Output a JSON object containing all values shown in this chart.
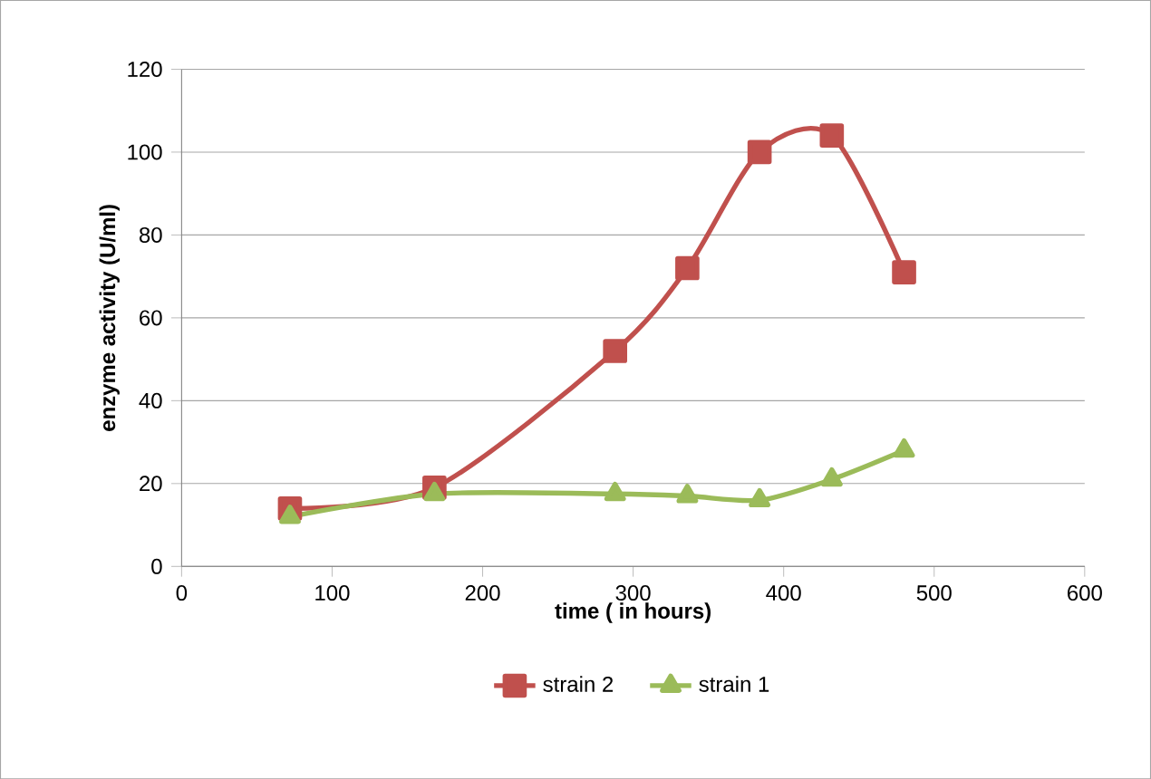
{
  "chart_data": {
    "type": "line",
    "xlabel": "time ( in hours)",
    "ylabel": "enzyme activity (U/ml)",
    "xlim": [
      0,
      600
    ],
    "xticks": [
      0,
      100,
      200,
      300,
      400,
      500,
      600
    ],
    "ylim": [
      0,
      120
    ],
    "yticks": [
      0,
      20,
      40,
      60,
      80,
      100,
      120
    ],
    "grid": "y",
    "legend": "bottom",
    "series": [
      {
        "name": "strain 2",
        "color": "#c0504d",
        "marker": "square",
        "x": [
          72,
          168,
          288,
          336,
          384,
          432,
          480
        ],
        "values": [
          14,
          19,
          52,
          72,
          100,
          104,
          71
        ]
      },
      {
        "name": "strain 1",
        "color": "#9bbb59",
        "marker": "triangle",
        "x": [
          72,
          168,
          288,
          336,
          384,
          432,
          480
        ],
        "values": [
          12,
          17.5,
          17.5,
          17,
          16,
          21,
          28
        ]
      }
    ]
  }
}
